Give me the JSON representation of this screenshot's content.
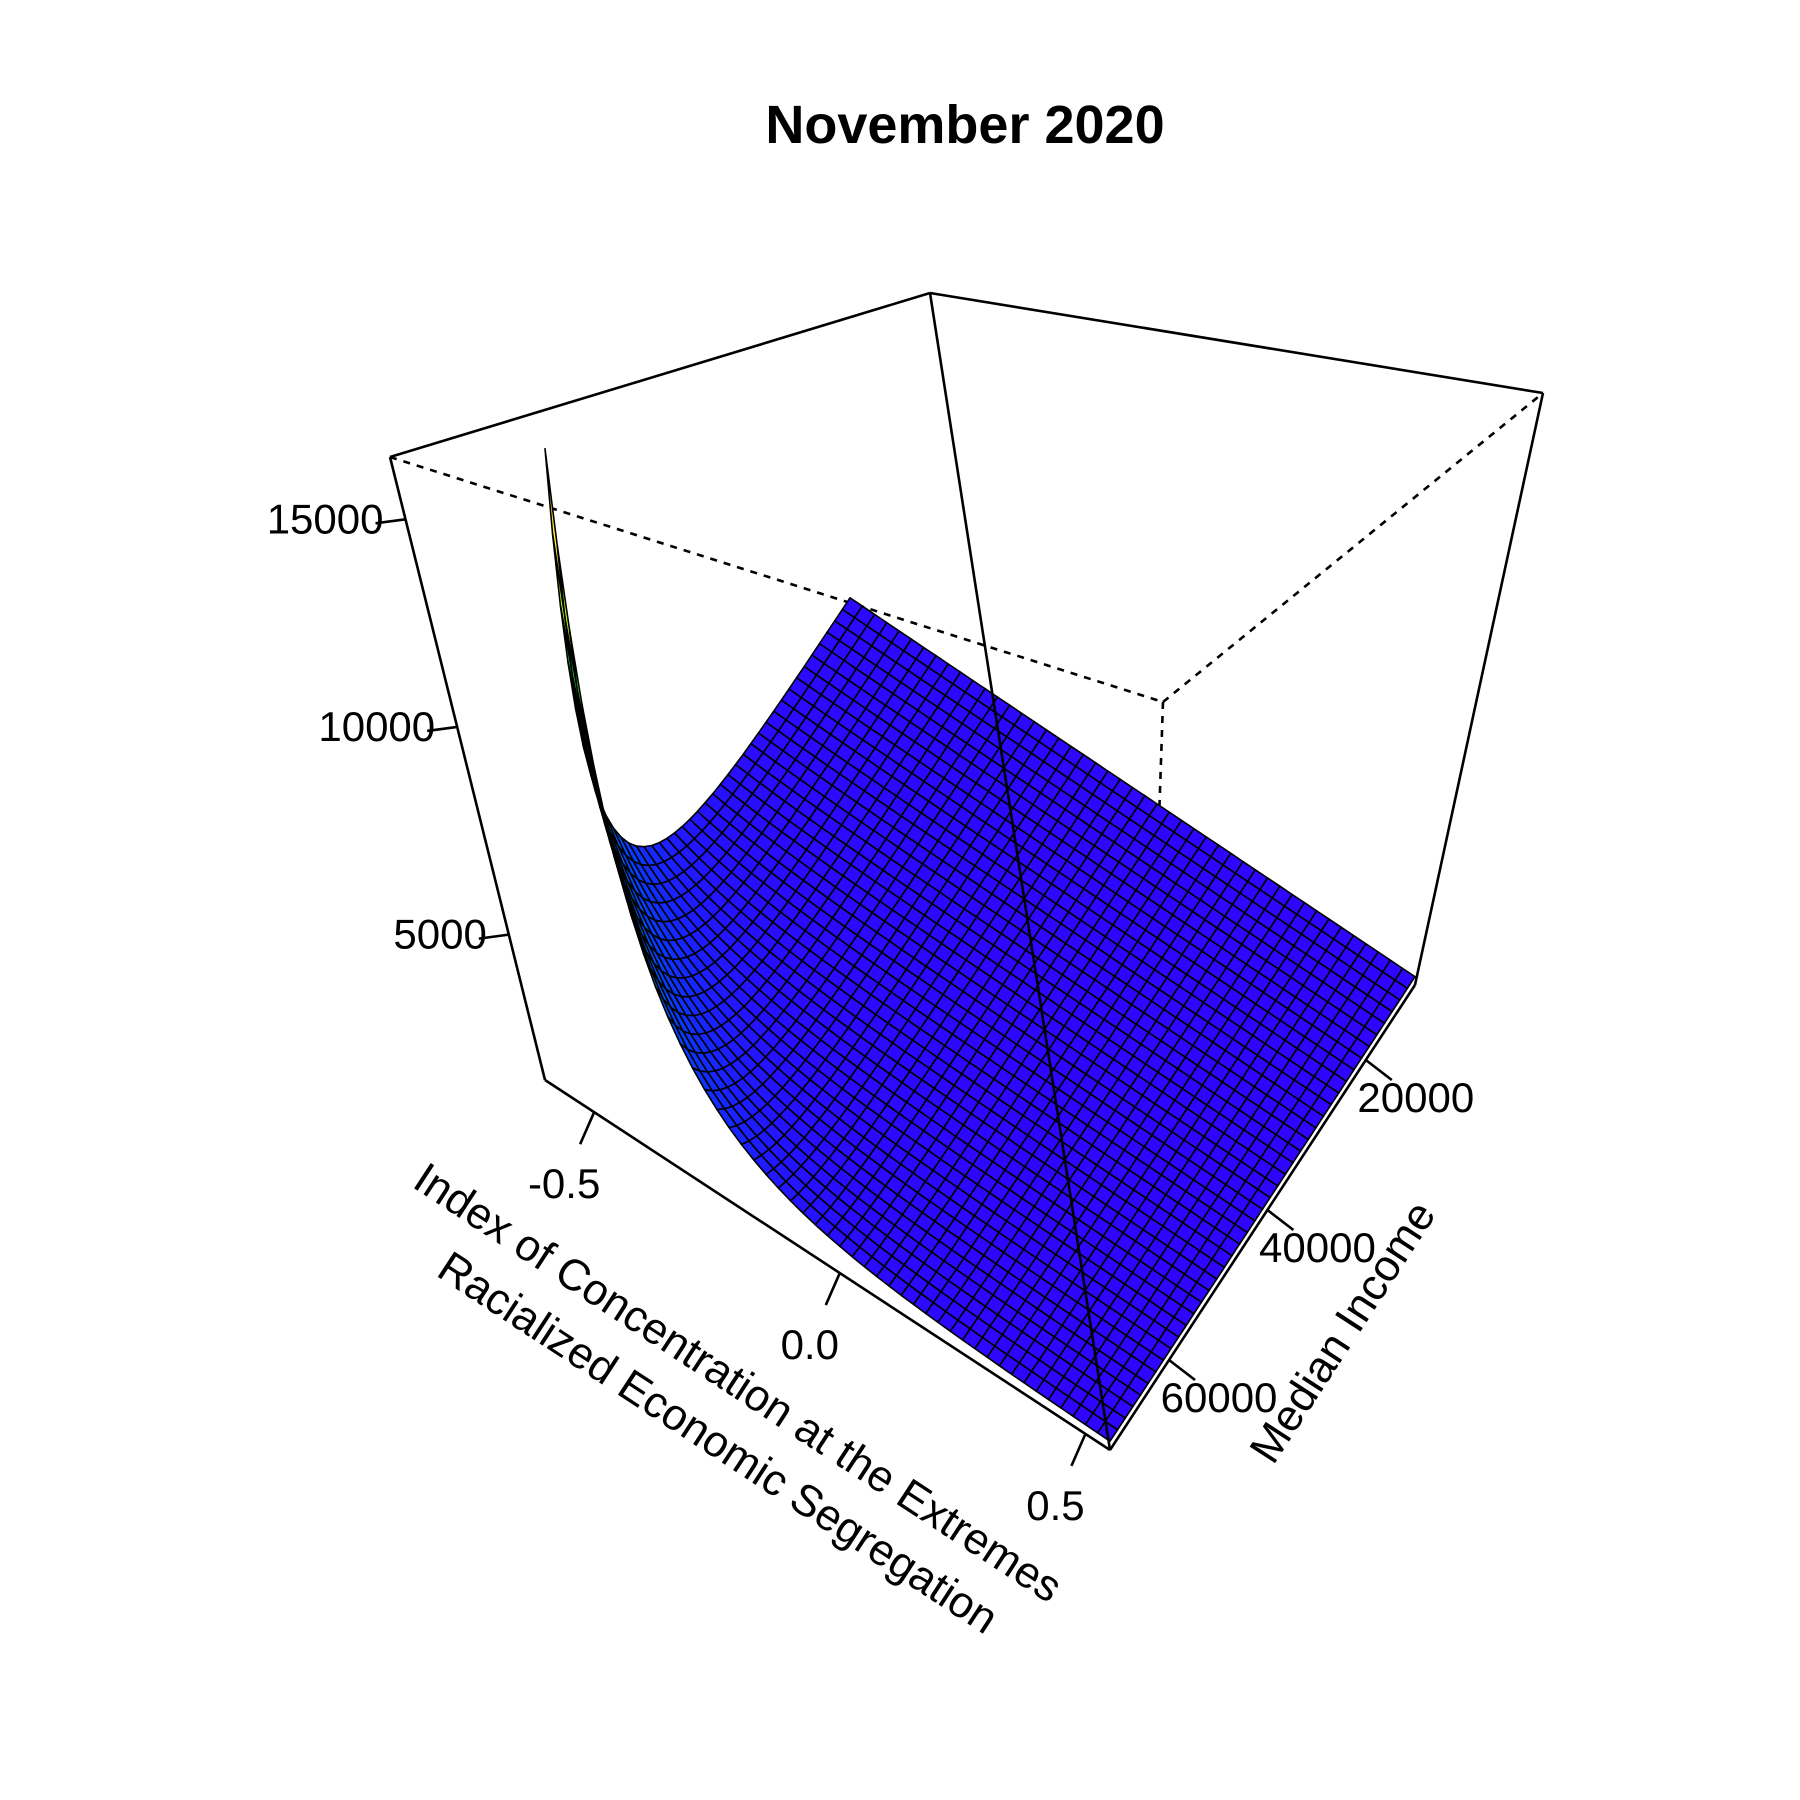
{
  "chart_data": {
    "type": "surface",
    "title": "November 2020",
    "xlabel": "Index of Concentration at the Extremes\nRacialized Economic Segregation",
    "ylabel": "Median Income",
    "zlabel": "",
    "x_ticks": [
      "-0.5",
      "0.0",
      "0.5"
    ],
    "y_ticks": [
      "20000",
      "40000",
      "60000"
    ],
    "z_ticks": [
      "5000",
      "10000",
      "15000"
    ],
    "xlim": [
      -0.6,
      0.55
    ],
    "ylim": [
      10000,
      72000
    ],
    "zlim": [
      1500,
      16500
    ],
    "surface_samples": [
      {
        "ice": -0.6,
        "income": 72000,
        "value": 16500
      },
      {
        "ice": -0.6,
        "income": 10000,
        "value": 1800
      },
      {
        "ice": 0.55,
        "income": 72000,
        "value": 1600
      },
      {
        "ice": 0.55,
        "income": 10000,
        "value": 1700
      }
    ],
    "colormap": [
      "#3300ff",
      "#0044ff",
      "#00ccff",
      "#00ff44",
      "#ffff00",
      "#ffcc77"
    ],
    "grid": false
  }
}
